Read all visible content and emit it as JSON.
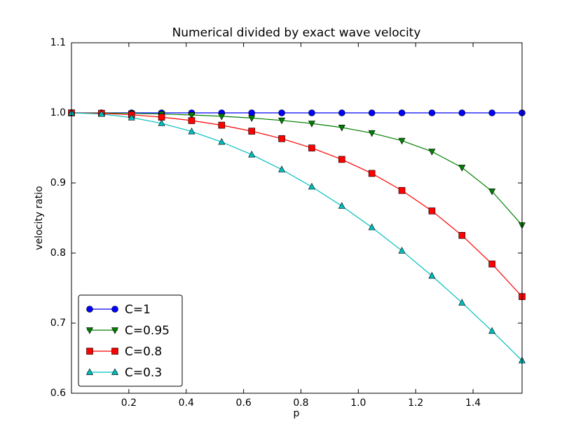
{
  "chart_data": {
    "type": "line",
    "title": "Numerical divided by exact wave velocity",
    "x_label": "p",
    "y_label": "velocity ratio",
    "x": [
      0,
      0.10472,
      0.20944,
      0.31416,
      0.41888,
      0.5236,
      0.62832,
      0.73304,
      0.83776,
      0.94248,
      1.0472,
      1.15192,
      1.25664,
      1.36136,
      1.46608,
      1.5708
    ],
    "series": [
      {
        "name": "C=1",
        "color": "#0000ff",
        "marker": "circle",
        "values": [
          1,
          1,
          1,
          1,
          1,
          1,
          1,
          1,
          1,
          1,
          1,
          1,
          1,
          1,
          1,
          1
        ]
      },
      {
        "name": "C=0.95",
        "color": "#008000",
        "marker": "triangle-down",
        "values": [
          1,
          0.9998,
          0.9993,
          0.9983,
          0.997,
          0.9951,
          0.9926,
          0.9892,
          0.9849,
          0.9791,
          0.9712,
          0.9603,
          0.9448,
          0.922,
          0.8881,
          0.8398
        ]
      },
      {
        "name": "C=0.8",
        "color": "#ff0000",
        "marker": "square",
        "values": [
          1,
          0.9994,
          0.9973,
          0.9939,
          0.989,
          0.9824,
          0.9739,
          0.9632,
          0.9499,
          0.9336,
          0.9136,
          0.8893,
          0.8601,
          0.8252,
          0.7844,
          0.7379
        ]
      },
      {
        "name": "C=0.3",
        "color": "#00bfbf",
        "marker": "triangle-up",
        "values": [
          1,
          0.9984,
          0.9933,
          0.9851,
          0.9734,
          0.9585,
          0.9404,
          0.9191,
          0.8946,
          0.8671,
          0.8366,
          0.8033,
          0.7675,
          0.7292,
          0.6888,
          0.6466
        ]
      }
    ],
    "xlim": [
      0,
      1.5708
    ],
    "ylim": [
      0.6,
      1.1
    ],
    "xticks": [
      0.2,
      0.4,
      0.6,
      0.8,
      {
        "value": 1,
        "label": "1.0"
      },
      1.2,
      1.4
    ],
    "yticks": [
      0.6,
      0.7,
      0.8,
      0.9,
      {
        "value": 1,
        "label": "1.0"
      },
      1.1
    ],
    "grid": false,
    "legend_position": "lower left"
  }
}
